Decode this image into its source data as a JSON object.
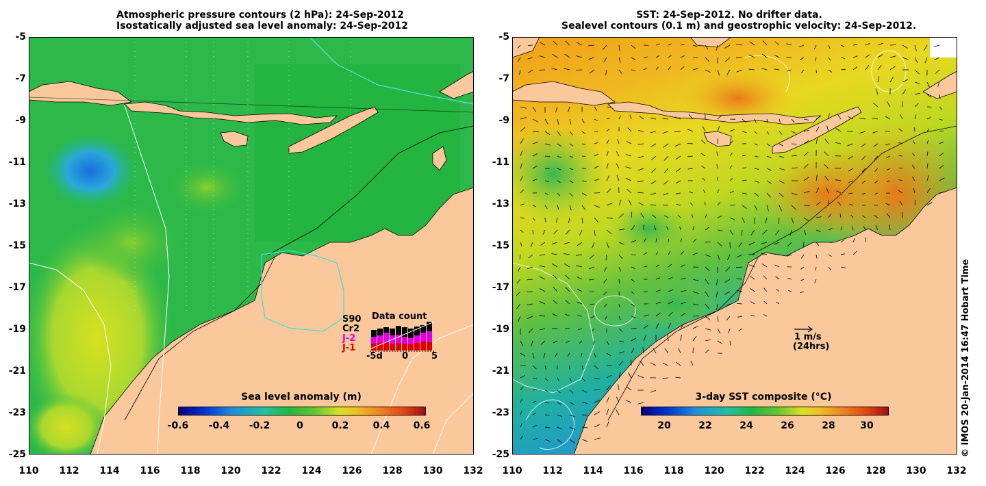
{
  "left_panel": {
    "title_line1": "Atmospheric pressure contours (2 hPa): 24-Sep-2012",
    "title_line2": "Isostatically adjusted sea level anomaly: 24-Sep-2012",
    "colorbar_label": "Sea level anomaly (m)",
    "colorbar_ticks": [
      "-0.6",
      "-0.4",
      "-0.2",
      "0",
      "0.2",
      "0.4",
      "0.6"
    ],
    "datacount_title": "Data count",
    "satellites": [
      {
        "name": "S90",
        "color": "#000000"
      },
      {
        "name": "Cr2",
        "color": "#000000"
      },
      {
        "name": "J-2",
        "color": "#e000e0"
      },
      {
        "name": "J-1",
        "color": "#e00000"
      }
    ],
    "datacount_axis": [
      "-5d",
      "0",
      "5"
    ]
  },
  "right_panel": {
    "title_line1": "SST: 24-Sep-2012. No drifter data.",
    "title_line2": "Sealevel contours (0.1 m) and geostrophic velocity: 24-Sep-2012.",
    "colorbar_label": "3-day SST composite (°C)",
    "colorbar_ticks": [
      "20",
      "22",
      "24",
      "26",
      "28",
      "30"
    ],
    "velocity_scale_label": "1 m/s",
    "velocity_scale_sub": "(24hrs)"
  },
  "y_ticks": [
    "-5",
    "-7",
    "-9",
    "-11",
    "-13",
    "-15",
    "-17",
    "-19",
    "-21",
    "-23",
    "-25"
  ],
  "x_ticks": [
    "110",
    "112",
    "114",
    "116",
    "118",
    "120",
    "122",
    "124",
    "126",
    "128",
    "130",
    "132"
  ],
  "credit": "© IMOS 20-Jan-2014 16:47 Hobart Time",
  "colors": {
    "land": "#fac89b",
    "sea_green": "#1fb840",
    "sst_orange": "#f0a020"
  }
}
